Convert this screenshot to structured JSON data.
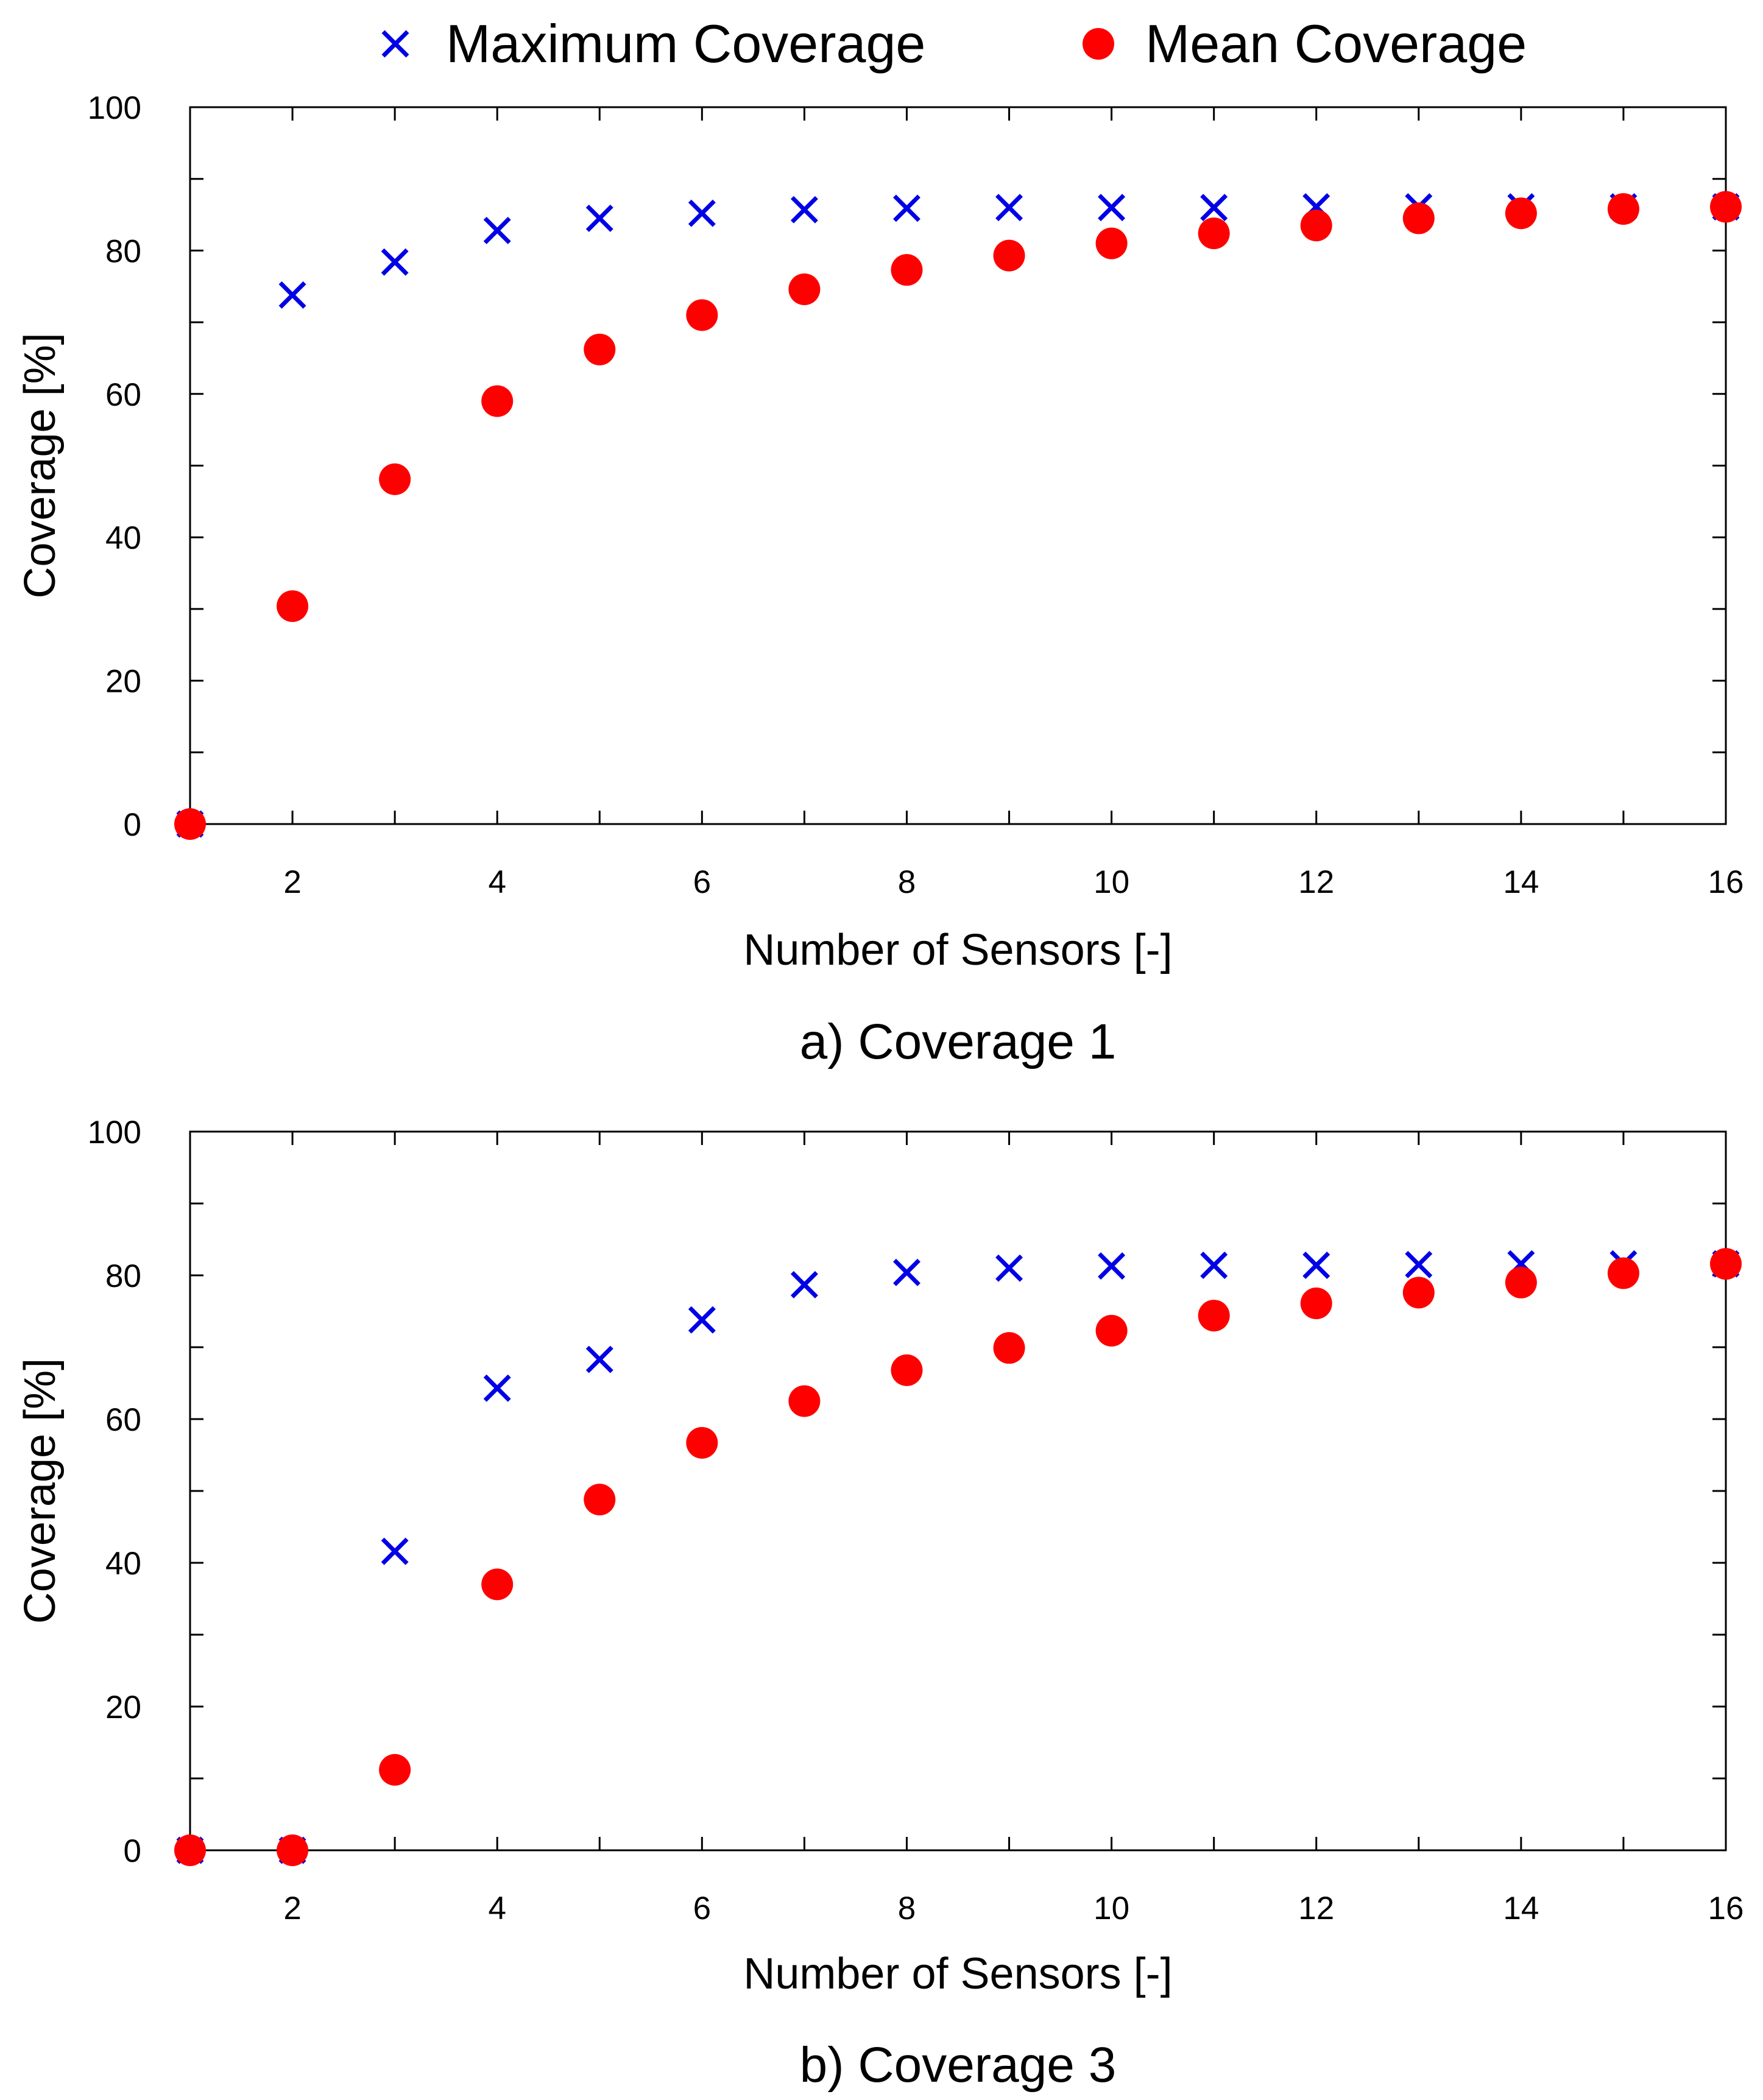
{
  "legend": {
    "items": [
      {
        "label": "Maximum Coverage",
        "marker": "cross",
        "color": "#0000e6"
      },
      {
        "label": "Mean Coverage",
        "marker": "dot",
        "color": "#ff0000"
      }
    ]
  },
  "chart_data": [
    {
      "type": "scatter",
      "caption": "a) Coverage 1",
      "xlabel": "Number of Sensors [-]",
      "ylabel": "Coverage [%]",
      "xlim": [
        1,
        16
      ],
      "ylim": [
        0,
        100
      ],
      "xticks": [
        2,
        4,
        6,
        8,
        10,
        12,
        14,
        16
      ],
      "yticks": [
        0,
        20,
        40,
        60,
        80,
        100
      ],
      "x": [
        1,
        2,
        3,
        4,
        5,
        6,
        7,
        8,
        9,
        10,
        11,
        12,
        13,
        14,
        15,
        16
      ],
      "series": [
        {
          "name": "Maximum Coverage",
          "marker": "cross",
          "color": "#0000e6",
          "values": [
            0,
            73.8,
            78.4,
            82.8,
            84.5,
            85.2,
            85.7,
            85.9,
            86.0,
            86.0,
            86.0,
            86.1,
            86.1,
            86.1,
            86.1,
            86.1
          ]
        },
        {
          "name": "Mean Coverage",
          "marker": "dot",
          "color": "#ff0000",
          "values": [
            0,
            30.4,
            48.1,
            59.0,
            66.2,
            71.0,
            74.6,
            77.3,
            79.3,
            81.0,
            82.4,
            83.5,
            84.5,
            85.2,
            85.8,
            86.1
          ]
        }
      ]
    },
    {
      "type": "scatter",
      "caption": "b) Coverage 3",
      "xlabel": "Number of Sensors [-]",
      "ylabel": "Coverage [%]",
      "xlim": [
        1,
        16
      ],
      "ylim": [
        0,
        100
      ],
      "xticks": [
        2,
        4,
        6,
        8,
        10,
        12,
        14,
        16
      ],
      "yticks": [
        0,
        20,
        40,
        60,
        80,
        100
      ],
      "x": [
        1,
        2,
        3,
        4,
        5,
        6,
        7,
        8,
        9,
        10,
        11,
        12,
        13,
        14,
        15,
        16
      ],
      "series": [
        {
          "name": "Maximum Coverage",
          "marker": "cross",
          "color": "#0000e6",
          "values": [
            0,
            0,
            41.6,
            64.3,
            68.3,
            73.8,
            78.7,
            80.4,
            81.0,
            81.3,
            81.4,
            81.4,
            81.5,
            81.6,
            81.6,
            81.6
          ]
        },
        {
          "name": "Mean Coverage",
          "marker": "dot",
          "color": "#ff0000",
          "values": [
            0,
            0,
            11.2,
            37.0,
            48.8,
            56.7,
            62.5,
            66.8,
            69.9,
            72.3,
            74.4,
            76.1,
            77.6,
            79.0,
            80.3,
            81.6
          ]
        }
      ]
    }
  ]
}
